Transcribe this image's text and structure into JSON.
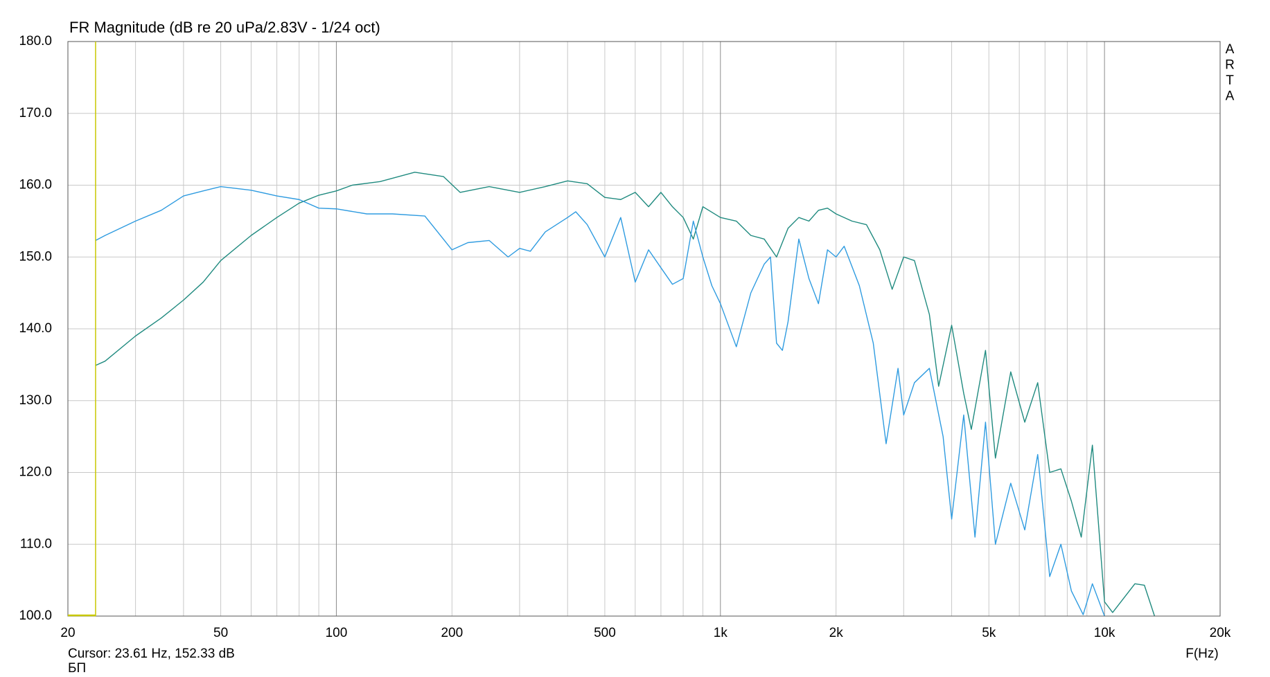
{
  "chart_data": {
    "type": "line",
    "title": "FR Magnitude (dB re 20 uPa/2.83V - 1/24 oct)",
    "watermark": [
      "A",
      "R",
      "T",
      "A"
    ],
    "cursor_text": "Cursor: 23.61 Hz, 152.33 dB",
    "cursor_x": 23.61,
    "cursor_color": "#c8c800",
    "xlabel": "F(Hz)",
    "footer": "БП",
    "xscale": "log",
    "grid": true,
    "xlim": [
      20,
      20000
    ],
    "ylim": [
      100,
      180
    ],
    "xticks": [
      20,
      50,
      100,
      200,
      500,
      {
        "value": 1000,
        "label": "1k"
      },
      {
        "value": 2000,
        "label": "2k"
      },
      {
        "value": 5000,
        "label": "5k"
      },
      {
        "value": 10000,
        "label": "10k"
      },
      {
        "value": 20000,
        "label": "20k"
      }
    ],
    "xminorticks": [
      30,
      40,
      60,
      70,
      80,
      90,
      300,
      400,
      600,
      700,
      800,
      900,
      3000,
      4000,
      6000,
      7000,
      8000,
      9000
    ],
    "yticks": [
      {
        "value": 100,
        "label": "100.0"
      },
      {
        "value": 110,
        "label": "110.0"
      },
      {
        "value": 120,
        "label": "120.0"
      },
      {
        "value": 130,
        "label": "130.0"
      },
      {
        "value": 140,
        "label": "140.0"
      },
      {
        "value": 150,
        "label": "150.0"
      },
      {
        "value": 160,
        "label": "160.0"
      },
      {
        "value": 170,
        "label": "170.0"
      },
      {
        "value": 180,
        "label": "180.0"
      }
    ],
    "series": [
      {
        "color": "#1f8a7f",
        "x": [
          23.61,
          25,
          30,
          35,
          40,
          45,
          50,
          60,
          70,
          80,
          90,
          100,
          110,
          130,
          160,
          190,
          210,
          250,
          300,
          350,
          400,
          450,
          500,
          550,
          600,
          650,
          700,
          750,
          800,
          850,
          900,
          1000,
          1100,
          1200,
          1300,
          1400,
          1500,
          1600,
          1700,
          1800,
          1900,
          2000,
          2200,
          2400,
          2600,
          2800,
          3000,
          3200,
          3500,
          3700,
          4000,
          4300,
          4500,
          4900,
          5200,
          5700,
          6200,
          6700,
          7200,
          7700,
          8200,
          8700,
          9300,
          10000,
          10500,
          12000,
          12700,
          13500
        ],
        "values": [
          134.9,
          135.5,
          139,
          141.5,
          144,
          146.5,
          149.5,
          153,
          155.5,
          157.5,
          158.6,
          159.2,
          160,
          160.5,
          161.8,
          161.2,
          159,
          159.8,
          159,
          159.8,
          160.6,
          160.2,
          158.3,
          158,
          159,
          157,
          159,
          157,
          155.5,
          152.5,
          157,
          155.5,
          155,
          153,
          152.5,
          150,
          154,
          155.5,
          155,
          156.5,
          156.8,
          156,
          155,
          154.5,
          151,
          145.5,
          150,
          149.5,
          142,
          132,
          140.5,
          131,
          126,
          137,
          122,
          134,
          127,
          132.5,
          120,
          120.5,
          116,
          111,
          123.8,
          102,
          100.5,
          104.5,
          104.3,
          100
        ]
      },
      {
        "color": "#2e9be0",
        "x": [
          23.61,
          25,
          30,
          35,
          40,
          45,
          50,
          60,
          70,
          80,
          90,
          100,
          120,
          140,
          170,
          200,
          220,
          250,
          280,
          300,
          320,
          350,
          400,
          420,
          450,
          500,
          550,
          600,
          650,
          700,
          750,
          800,
          850,
          900,
          950,
          1000,
          1100,
          1200,
          1300,
          1350,
          1400,
          1450,
          1500,
          1600,
          1700,
          1800,
          1900,
          2000,
          2100,
          2300,
          2500,
          2700,
          2900,
          3000,
          3200,
          3500,
          3800,
          4000,
          4300,
          4600,
          4900,
          5200,
          5700,
          6200,
          6700,
          7200,
          7700,
          8200,
          8800,
          9300,
          10000
        ],
        "values": [
          152.3,
          153,
          155,
          156.5,
          158.5,
          159.2,
          159.8,
          159.3,
          158.5,
          158,
          156.8,
          156.7,
          156,
          156,
          155.7,
          151,
          152,
          152.3,
          150,
          151.2,
          150.8,
          153.5,
          155.5,
          156.3,
          154.5,
          150,
          155.5,
          146.5,
          151,
          148.5,
          146.2,
          147,
          155,
          150,
          146,
          143.5,
          137.5,
          145,
          149,
          150,
          138,
          137,
          141,
          152.5,
          147,
          143.5,
          151,
          150,
          151.5,
          146,
          138,
          124,
          134.5,
          128,
          132.5,
          134.5,
          125,
          113.5,
          128,
          111,
          127,
          110,
          118.5,
          112,
          122.5,
          105.5,
          110,
          103.5,
          100.2,
          104.5,
          100
        ]
      }
    ]
  }
}
